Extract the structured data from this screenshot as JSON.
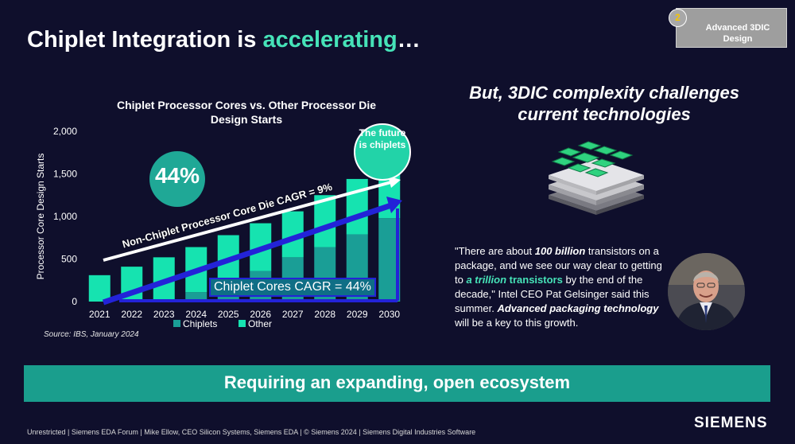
{
  "slide": {
    "title_prefix": "Chiplet Integration is ",
    "title_accent": "accelerating",
    "title_suffix": "…",
    "badge_number": "2",
    "badge_text": "Advanced 3DIC Design",
    "right_heading": "But, 3DIC complexity challenges current technologies",
    "banner": "Requiring an expanding, open ecosystem",
    "footer": "Unrestricted | Siemens EDA Forum | Mike Ellow, CEO Silicon Systems, Siemens EDA | © Siemens 2024 | Siemens Digital Industries Software",
    "logo": "SIEMENS"
  },
  "quote": {
    "part1": "\"There are about ",
    "bold1": "100 billion",
    "part2": " transistors on a package, and we see our way clear to getting to ",
    "green_a": "a trillion",
    "green_b": " transistors",
    "part3": " by the end of the decade,\" Intel CEO Pat Gelsinger said this summer. ",
    "bold2": "Advanced packaging technology",
    "part4": " will be a key to this growth."
  },
  "annotations": {
    "percent": "44%",
    "future": "The future is chiplets",
    "chiplet_cagr": "Chiplet Cores CAGR = 44%",
    "nonchiplet_cagr": "Non-Chiplet Processor Core Die CAGR = 9%",
    "source": "Source: IBS, January 2024"
  },
  "colors": {
    "background": "#0f0f2c",
    "accent": "#46e3b8",
    "chiplets": "#1a9e96",
    "other": "#16e3b0",
    "banner": "#1a9e8d"
  },
  "chart_data": {
    "type": "bar",
    "stacked": true,
    "title": "Chiplet Processor Cores vs. Other Processor Die Design Starts",
    "ylabel": "Processor Core Design Starts",
    "xlabel": "",
    "ylim": [
      0,
      2000
    ],
    "yticks": [
      "0",
      "500",
      "1,000",
      "1,500",
      "2,000"
    ],
    "categories": [
      "2021",
      "2022",
      "2023",
      "2024",
      "2025",
      "2026",
      "2027",
      "2028",
      "2029",
      "2030"
    ],
    "series": [
      {
        "name": "Chiplets",
        "values": [
          0,
          0,
          0,
          110,
          220,
          360,
          520,
          640,
          790,
          980
        ]
      },
      {
        "name": "Other",
        "values": [
          310,
          410,
          520,
          530,
          560,
          560,
          540,
          610,
          650,
          660
        ]
      }
    ],
    "legend_position": "bottom",
    "grid": false
  }
}
